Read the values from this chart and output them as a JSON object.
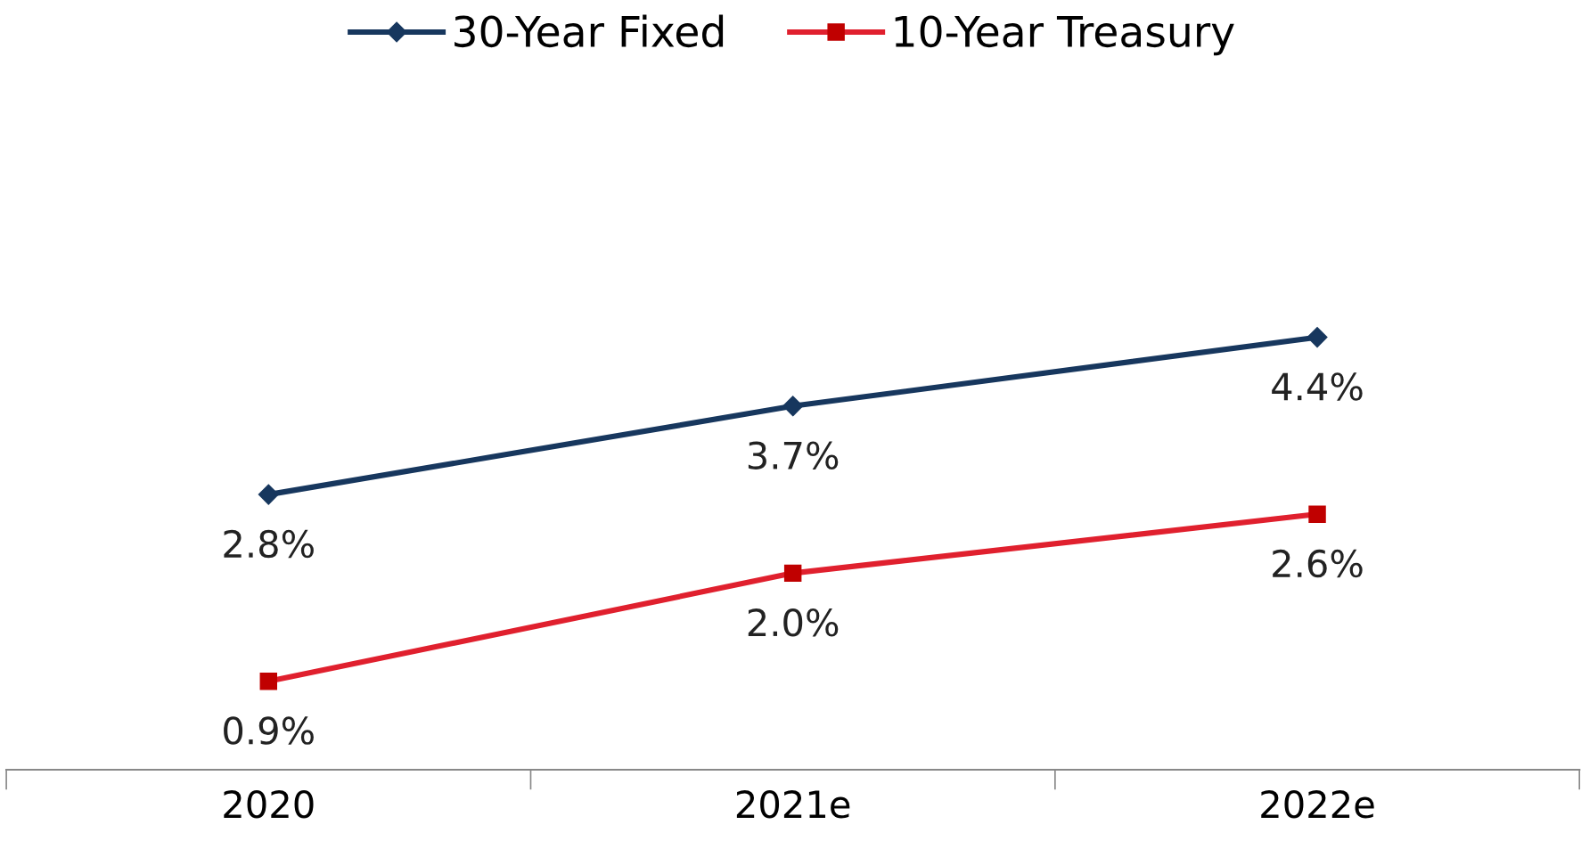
{
  "chart_data": {
    "type": "line",
    "categories": [
      "2020",
      "2021e",
      "2022e"
    ],
    "series": [
      {
        "name": "30-Year Fixed",
        "color": "#17375e",
        "marker": "diamond",
        "values": [
          2.8,
          3.7,
          4.4
        ],
        "value_labels": [
          "2.8%",
          "3.7%",
          "4.4%"
        ]
      },
      {
        "name": "10-Year Treasury",
        "color": "#e0202e",
        "marker": "square",
        "values": [
          0.9,
          2.0,
          2.6
        ],
        "value_labels": [
          "0.9%",
          "2.0%",
          "2.6%"
        ]
      }
    ],
    "grid": false,
    "legend": "top",
    "line_style": "solid"
  }
}
